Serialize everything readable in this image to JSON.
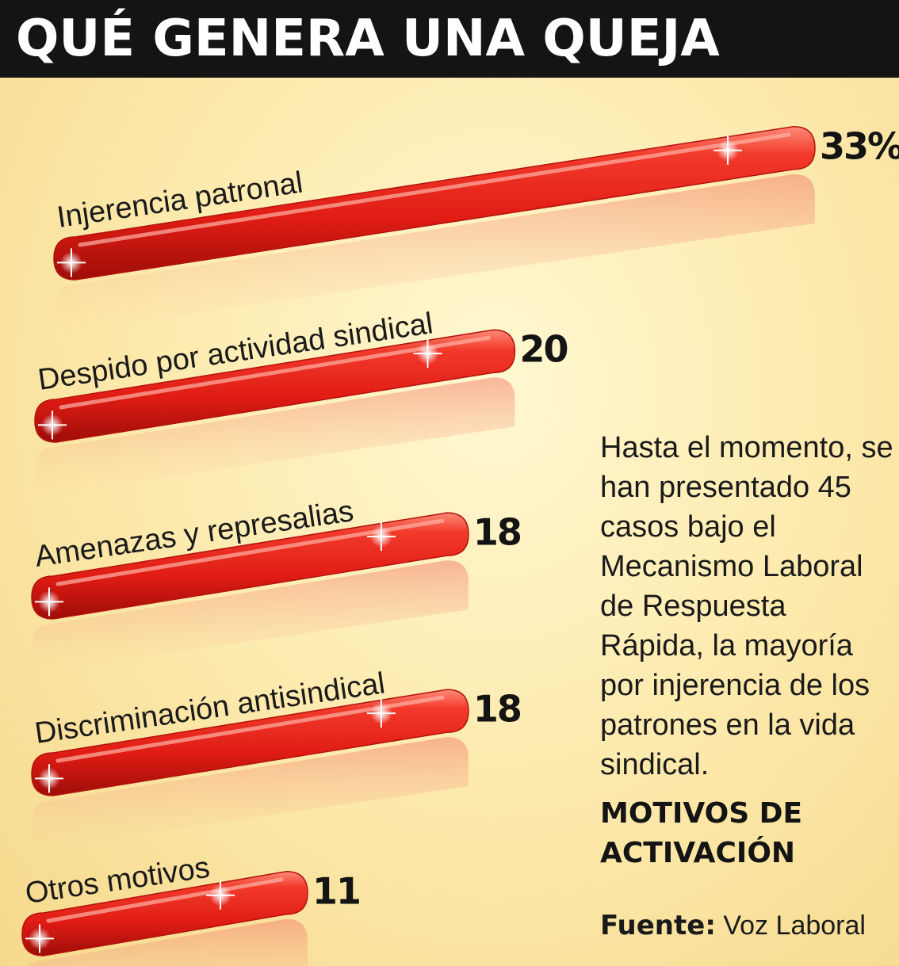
{
  "header": {
    "title": "QUÉ GENERA UNA QUEJA"
  },
  "chart_data": {
    "type": "bar",
    "orientation": "horizontal",
    "categories": [
      "Injerencia patronal",
      "Despido por actividad sindical",
      "Amenazas y represalias",
      "Discriminación antisindical",
      "Otros motivos"
    ],
    "values": [
      33,
      20,
      18,
      18,
      11
    ],
    "value_labels": [
      "33%",
      "20",
      "18",
      "18",
      "11"
    ],
    "unit": "%",
    "bar_color": "#e8261e",
    "grid": false,
    "legend": "none"
  },
  "description": "Hasta el momento, se han presentado 45 casos bajo el Mecanismo Laboral de Respuesta Rápida, la mayoría por injerencia de los patrones en la vida sindical.",
  "subtitle": "MOTIVOS DE ACTIVACIÓN",
  "source": {
    "label": "Fuente:",
    "value": "Voz Laboral"
  }
}
